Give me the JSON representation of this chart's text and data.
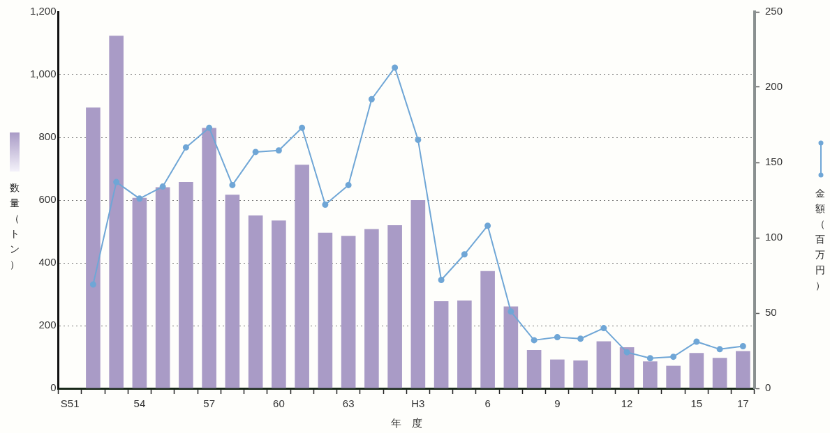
{
  "chart_data": {
    "type": "bar",
    "xlabel": "年　度",
    "ylabel": "数量（トン）",
    "y2label": "金額（百万円）",
    "categories": [
      "S51",
      null,
      null,
      "54",
      null,
      null,
      "57",
      null,
      null,
      "60",
      null,
      null,
      "63",
      null,
      null,
      "H3",
      null,
      null,
      "6",
      null,
      null,
      "9",
      null,
      null,
      "12",
      null,
      null,
      "15",
      null,
      "17"
    ],
    "series": [
      {
        "color": "#a99bc6",
        "values": [
          null,
          895,
          1124,
          607,
          641,
          658,
          830,
          617,
          551,
          535,
          713,
          496,
          486,
          508,
          520,
          600,
          278,
          280,
          374,
          261,
          122,
          92,
          89,
          150,
          131,
          86,
          72,
          113,
          97,
          119
        ]
      },
      {
        "type": "line",
        "axis": "y2",
        "color": "#6fa6d6",
        "values": [
          null,
          69,
          137,
          126,
          134,
          160,
          173,
          135,
          157,
          158,
          173,
          122,
          135,
          192,
          213,
          165,
          72,
          89,
          108,
          51,
          32,
          34,
          33,
          40,
          24,
          20,
          21,
          31,
          26,
          28
        ]
      }
    ],
    "ylim": [
      0,
      1200
    ],
    "yticks": [
      0,
      200,
      400,
      600,
      800,
      {
        "value": 1000,
        "label": "1,000"
      },
      {
        "value": 1200,
        "label": "1,200"
      }
    ],
    "y2lim": [
      0,
      250
    ],
    "y2ticks": [
      0,
      50,
      100,
      150,
      200,
      250
    ],
    "grid": "y",
    "marker": "circle",
    "line_style": "solid"
  }
}
